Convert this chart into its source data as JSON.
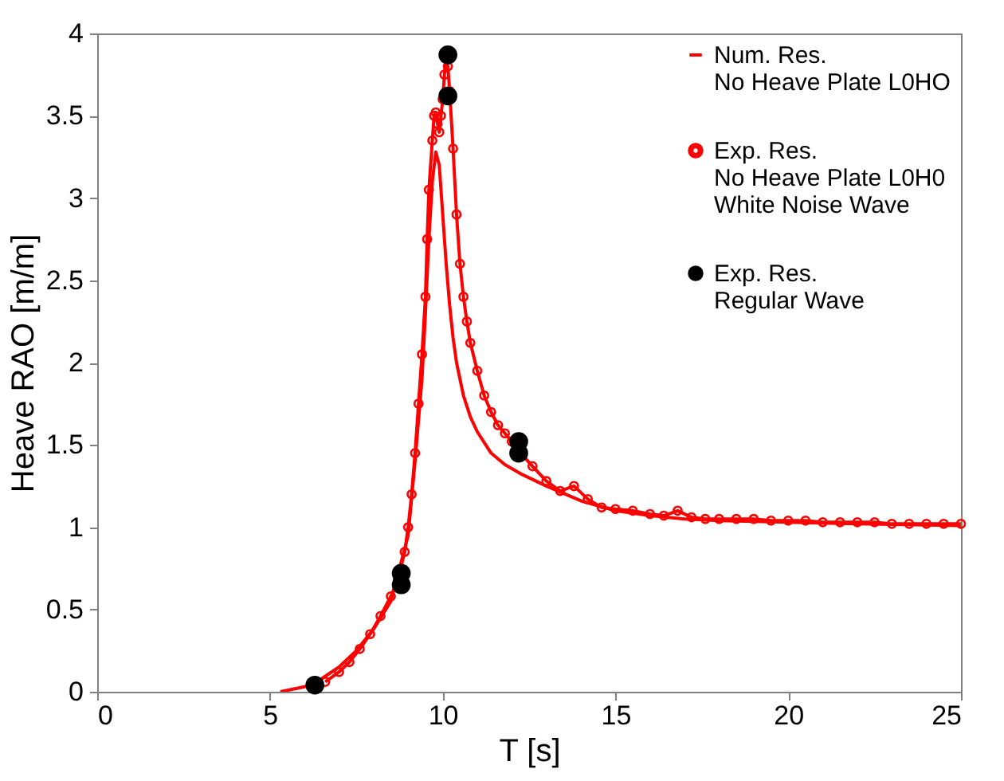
{
  "chart_data": {
    "type": "line",
    "xlabel": "T [s]",
    "ylabel": "Heave RAO [m/m]",
    "xlim": [
      0,
      25
    ],
    "ylim": [
      0,
      4
    ],
    "xticks": [
      0,
      5,
      10,
      15,
      20,
      25
    ],
    "yticks": [
      0,
      0.5,
      1,
      1.5,
      2,
      2.5,
      3,
      3.5,
      4
    ],
    "grid": false,
    "legend": "top right",
    "series": [
      {
        "name": "Num. Res.\nNo Heave Plate L0HO",
        "type": "line",
        "marker": "none",
        "color": "#ff0000",
        "x": [
          5.3,
          6,
          6.5,
          7,
          7.5,
          8,
          8.5,
          9,
          9.2,
          9.4,
          9.5,
          9.6,
          9.7,
          9.8,
          9.9,
          10,
          10.1,
          10.2,
          10.3,
          10.4,
          10.6,
          10.8,
          11,
          11.4,
          11.8,
          12.3,
          13,
          14,
          15,
          16,
          17,
          18,
          20,
          22,
          25
        ],
        "values": [
          0,
          0.03,
          0.08,
          0.15,
          0.25,
          0.38,
          0.55,
          0.95,
          1.4,
          1.9,
          2.3,
          2.75,
          3.1,
          3.28,
          3.2,
          2.9,
          2.6,
          2.35,
          2.15,
          2.0,
          1.8,
          1.67,
          1.58,
          1.45,
          1.38,
          1.32,
          1.25,
          1.16,
          1.1,
          1.07,
          1.05,
          1.04,
          1.03,
          1.02,
          1.01
        ]
      },
      {
        "name": "Exp. Res.\nNo Heave Plate L0H0\nWhite Noise Wave",
        "type": "line",
        "marker": "circle",
        "color": "#ff0000",
        "x": [
          6.6,
          7,
          7.3,
          7.6,
          7.9,
          8.2,
          8.5,
          8.7,
          8.9,
          9,
          9.1,
          9.2,
          9.3,
          9.4,
          9.5,
          9.55,
          9.6,
          9.7,
          9.75,
          9.8,
          9.85,
          9.9,
          9.95,
          10,
          10.05,
          10.1,
          10.15,
          10.2,
          10.3,
          10.4,
          10.5,
          10.6,
          10.7,
          10.8,
          11,
          11.2,
          11.4,
          11.6,
          11.8,
          12,
          12.3,
          12.6,
          13,
          13.4,
          13.8,
          14.2,
          14.6,
          15,
          15.5,
          16,
          16.4,
          16.8,
          17.2,
          17.6,
          18,
          18.5,
          19,
          19.5,
          20,
          20.5,
          21,
          21.5,
          22,
          22.5,
          23,
          23.5,
          24,
          24.5,
          25
        ],
        "values": [
          0.06,
          0.12,
          0.18,
          0.26,
          0.35,
          0.46,
          0.58,
          0.68,
          0.85,
          1.0,
          1.2,
          1.45,
          1.75,
          2.05,
          2.4,
          2.75,
          3.05,
          3.35,
          3.5,
          3.52,
          3.45,
          3.4,
          3.5,
          3.6,
          3.75,
          3.85,
          3.8,
          3.65,
          3.3,
          2.9,
          2.6,
          2.4,
          2.25,
          2.12,
          1.95,
          1.8,
          1.7,
          1.62,
          1.57,
          1.52,
          1.44,
          1.37,
          1.28,
          1.22,
          1.25,
          1.17,
          1.12,
          1.11,
          1.1,
          1.08,
          1.07,
          1.1,
          1.06,
          1.05,
          1.05,
          1.05,
          1.05,
          1.04,
          1.04,
          1.04,
          1.03,
          1.03,
          1.03,
          1.03,
          1.02,
          1.02,
          1.02,
          1.02,
          1.02
        ]
      },
      {
        "name": "Exp. Res.\nRegular Wave",
        "type": "scatter",
        "marker": "circle",
        "color": "#000000",
        "x": [
          6.3,
          8.8,
          8.8,
          10.15,
          10.15,
          12.2,
          12.2
        ],
        "values": [
          0.04,
          0.65,
          0.72,
          3.87,
          3.62,
          1.45,
          1.52
        ]
      }
    ]
  }
}
